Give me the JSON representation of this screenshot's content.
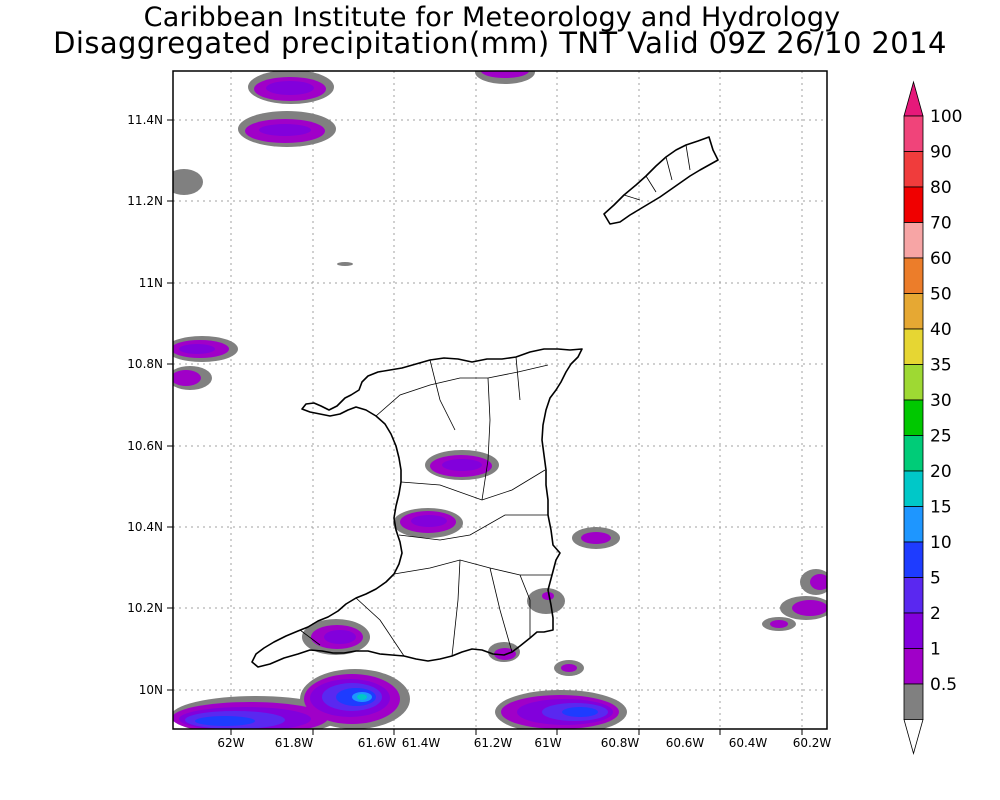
{
  "header": {
    "title_line1": "Caribbean Institute for Meteorology and Hydrology",
    "title_line2": "Disaggregated precipitation(mm) TNT Valid 09Z 26/10 2014"
  },
  "map": {
    "lon_ticks": [
      "62W",
      "61.8W",
      "61.6W",
      "61.4W",
      "61.2W",
      "61W",
      "60.8W",
      "60.6W",
      "60.4W",
      "60.2W"
    ],
    "lat_ticks": [
      "11.4N",
      "11.2N",
      "11N",
      "10.8N",
      "10.6N",
      "10.4N",
      "10.2N",
      "10N"
    ],
    "grid": true
  },
  "legend": {
    "labels": [
      "100",
      "90",
      "80",
      "70",
      "60",
      "50",
      "40",
      "35",
      "30",
      "25",
      "20",
      "15",
      "10",
      "5",
      "2",
      "1",
      "0.5"
    ],
    "colors": [
      "#f0447a",
      "#f03c3c",
      "#f00000",
      "#f7a5a5",
      "#ec7d2a",
      "#e6a833",
      "#e6d633",
      "#9ed933",
      "#00c800",
      "#00cc78",
      "#00c8c8",
      "#1e96ff",
      "#1e3cff",
      "#5a28f0",
      "#8200dc",
      "#a000c8",
      "#808080"
    ]
  }
}
